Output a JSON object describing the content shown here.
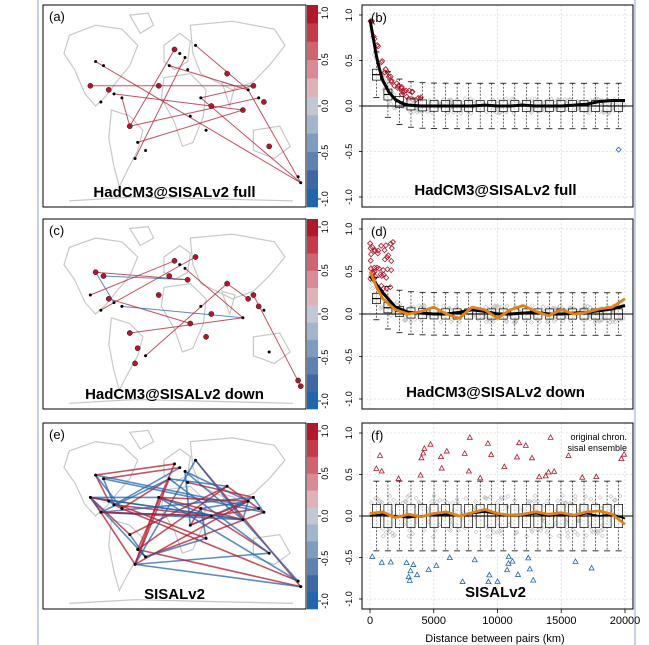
{
  "colors": {
    "positive": "#b2182b",
    "negative": "#2166ac",
    "mean_line": "#000000",
    "ensemble_line": "#e08214",
    "land": "#c8c8c8",
    "grid": "#dcdcdc"
  },
  "colorbar": {
    "ticks": [
      "1.0",
      "0.5",
      "0.0",
      "-0.5",
      "-1.0"
    ],
    "colors": [
      "#b2182b",
      "#c53a4a",
      "#d06272",
      "#d98a95",
      "#e2b0b7",
      "#c2c8d2",
      "#a3b5cc",
      "#7f9cc0",
      "#5d82b2",
      "#3d68a4",
      "#2166ac"
    ]
  },
  "panels": [
    {
      "map_label": "(a)",
      "map_title": "HadCM3@SISALv2 full",
      "plot_label": "(b)",
      "plot_title": "HadCM3@SISALv2 full"
    },
    {
      "map_label": "(c)",
      "map_title": "HadCM3@SISALv2 down",
      "plot_label": "(d)",
      "plot_title": "HadCM3@SISALv2 down"
    },
    {
      "map_label": "(e)",
      "map_title": "SISALv2",
      "plot_label": "(f)",
      "plot_title": "SISALv2"
    }
  ],
  "legend": {
    "original": "original chron.",
    "ensemble": "sisal ensemble"
  },
  "xlabel": "Distance between pairs (km)",
  "chart_data": [
    {
      "type": "box",
      "panel": "b",
      "title": "HadCM3@SISALv2 full",
      "xlabel": "",
      "ylabel": "",
      "xlim": [
        0,
        20000
      ],
      "ylim": [
        -1,
        1
      ],
      "x_ticks": [
        0,
        5000,
        10000,
        15000,
        20000
      ],
      "y_ticks": [
        "1.0",
        "0.5",
        "0.0",
        "-0.5",
        "-1.0"
      ],
      "grid": true,
      "series": [
        {
          "name": "",
          "x": [
            0,
            250,
            500,
            750,
            1000,
            1500,
            2000,
            2500,
            3000,
            4000,
            5000,
            6000,
            7000,
            8000,
            9000,
            10000,
            11000,
            12000,
            13000,
            14000,
            15000,
            16000,
            17000,
            18000,
            19000,
            20000
          ],
          "y": [
            0.95,
            0.75,
            0.55,
            0.4,
            0.28,
            0.15,
            0.07,
            0.03,
            0.01,
            0.0,
            0.0,
            0.0,
            0.0,
            0.0,
            0.01,
            0.0,
            0.0,
            0.01,
            0.0,
            0.0,
            0.0,
            0.01,
            0.02,
            0.05,
            0.06,
            0.06
          ]
        }
      ],
      "boxes_median": [
        0.6,
        0.3,
        0.1,
        0.03,
        0.0,
        0.0,
        0.0,
        0.0,
        0.02,
        0.02,
        0.0,
        0.0,
        0.01,
        0.01,
        0.01,
        0.0,
        0.02,
        0.0,
        0.0,
        0.01,
        0.04,
        0.05
      ]
    },
    {
      "type": "box",
      "panel": "d",
      "title": "HadCM3@SISALv2 down",
      "xlim": [
        0,
        20000
      ],
      "ylim": [
        -1,
        1
      ],
      "x_ticks": [
        0,
        5000,
        10000,
        15000,
        20000
      ],
      "y_ticks": [
        "1.0",
        "0.5",
        "0.0",
        "-0.5",
        "-1.0"
      ],
      "grid": true,
      "series": [
        {
          "name": "original chron.",
          "x": [
            0,
            500,
            1000,
            2000,
            3000,
            4000,
            5000,
            6000,
            7000,
            8000,
            9000,
            10000,
            11000,
            12000,
            13000,
            14000,
            15000,
            16000,
            17000,
            18000,
            19000,
            20000
          ],
          "y": [
            0.45,
            0.35,
            0.25,
            0.08,
            0.02,
            0.01,
            0.0,
            0.0,
            0.02,
            0.05,
            0.03,
            0.0,
            0.0,
            0.01,
            0.02,
            0.0,
            0.0,
            0.01,
            0.02,
            0.04,
            0.06,
            0.1
          ]
        },
        {
          "name": "sisal ensemble",
          "x": [
            0,
            500,
            1000,
            2000,
            3000,
            4000,
            5000,
            6000,
            7000,
            8000,
            9000,
            10000,
            11000,
            12000,
            13000,
            14000,
            15000,
            16000,
            17000,
            18000,
            19000,
            20000
          ],
          "y": [
            0.5,
            0.32,
            0.18,
            0.05,
            0.0,
            0.03,
            0.08,
            0.0,
            -0.05,
            0.08,
            0.05,
            -0.05,
            0.05,
            0.1,
            0.03,
            -0.02,
            0.05,
            0.0,
            0.02,
            0.06,
            0.08,
            0.18
          ]
        }
      ]
    },
    {
      "type": "box",
      "panel": "f",
      "title": "SISALv2",
      "xlabel": "Distance between pairs (km)",
      "xlim": [
        0,
        20000
      ],
      "ylim": [
        -1,
        1
      ],
      "x_ticks": [
        "0",
        "5000",
        "10000",
        "15000",
        "20000"
      ],
      "y_ticks": [
        "1.0",
        "0.5",
        "0.0",
        "-0.5",
        "-1.0"
      ],
      "grid": true,
      "legend": [
        "original chron.",
        "sisal ensemble"
      ],
      "legend_position": "top-right",
      "series": [
        {
          "name": "original chron.",
          "x": [
            0,
            1000,
            2000,
            3000,
            4000,
            5000,
            6000,
            7000,
            8000,
            9000,
            10000,
            11000,
            12000,
            13000,
            14000,
            15000,
            16000,
            17000,
            18000,
            19000,
            20000
          ],
          "y": [
            0.0,
            0.02,
            0.0,
            -0.02,
            0.0,
            0.01,
            0.02,
            0.0,
            0.03,
            0.05,
            0.02,
            0.0,
            0.01,
            0.03,
            0.0,
            0.02,
            0.0,
            0.03,
            0.0,
            0.02,
            -0.03
          ]
        },
        {
          "name": "sisal ensemble",
          "x": [
            0,
            1000,
            2000,
            3000,
            4000,
            5000,
            6000,
            7000,
            8000,
            9000,
            10000,
            11000,
            12000,
            13000,
            14000,
            15000,
            16000,
            17000,
            18000,
            19000,
            20000
          ],
          "y": [
            0.03,
            0.05,
            -0.02,
            0.02,
            -0.01,
            0.03,
            0.05,
            0.0,
            0.04,
            0.08,
            0.03,
            0.01,
            0.02,
            0.05,
            0.02,
            0.04,
            0.01,
            0.05,
            0.06,
            0.02,
            -0.1
          ]
        }
      ]
    }
  ]
}
